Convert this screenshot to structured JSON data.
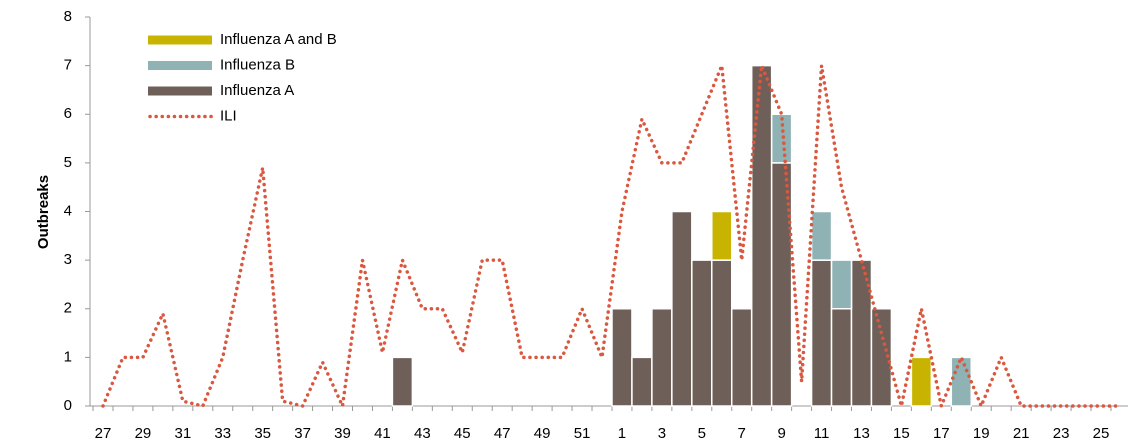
{
  "chart_data": {
    "type": "bar",
    "y_label": "Outbreaks",
    "categories": [
      "27",
      null,
      "29",
      null,
      "31",
      null,
      "33",
      null,
      "35",
      null,
      "37",
      null,
      "39",
      null,
      "41",
      null,
      "43",
      null,
      "45",
      null,
      "47",
      null,
      "49",
      null,
      "51",
      null,
      "1",
      null,
      "3",
      null,
      "5",
      null,
      "7",
      null,
      "9",
      null,
      "11",
      null,
      "13",
      null,
      "15",
      null,
      "17",
      null,
      "19",
      null,
      "21",
      null,
      "23",
      null,
      "25",
      null
    ],
    "series": [
      {
        "name": "Influenza A and B",
        "type": "bar",
        "color": "#c8b400",
        "values": [
          0,
          0,
          0,
          0,
          0,
          0,
          0,
          0,
          0,
          0,
          0,
          0,
          0,
          0,
          0,
          0,
          0,
          0,
          0,
          0,
          0,
          0,
          0,
          0,
          0,
          0,
          0,
          0,
          0,
          0,
          0,
          1,
          0,
          0,
          0,
          0,
          0,
          0,
          0,
          0,
          0,
          1,
          0,
          0,
          0,
          0,
          0,
          0,
          0,
          0,
          0,
          0
        ]
      },
      {
        "name": "Influenza B",
        "type": "bar",
        "color": "#8fb3b5",
        "values": [
          0,
          0,
          0,
          0,
          0,
          0,
          0,
          0,
          0,
          0,
          0,
          0,
          0,
          0,
          0,
          0,
          0,
          0,
          0,
          0,
          0,
          0,
          0,
          0,
          0,
          0,
          0,
          0,
          0,
          0,
          0,
          0,
          0,
          0,
          1,
          0,
          1,
          1,
          0,
          0,
          0,
          0,
          0,
          1,
          0,
          0,
          0,
          0,
          0,
          0,
          0,
          0
        ]
      },
      {
        "name": "Influenza A",
        "type": "bar",
        "color": "#6e5f58",
        "values": [
          0,
          0,
          0,
          0,
          0,
          0,
          0,
          0,
          0,
          0,
          0,
          0,
          0,
          0,
          0,
          1,
          0,
          0,
          0,
          0,
          0,
          0,
          0,
          0,
          0,
          0,
          2,
          1,
          2,
          4,
          3,
          3,
          2,
          7,
          5,
          0,
          3,
          2,
          3,
          2,
          0,
          0,
          0,
          0,
          0,
          0,
          0,
          0,
          0,
          0,
          0,
          0
        ]
      },
      {
        "name": "ILI",
        "type": "line",
        "color": "#d9583f",
        "values": [
          0,
          1,
          1,
          1.9,
          0.1,
          0,
          1,
          3,
          4.9,
          0.1,
          0,
          0.9,
          0,
          3,
          1.1,
          3,
          2,
          2,
          1.1,
          3,
          3,
          1,
          1,
          1,
          2,
          1,
          4,
          5.9,
          5,
          5,
          6,
          7,
          3,
          7,
          6,
          0.5,
          7,
          4.5,
          3,
          1.5,
          0,
          2,
          0,
          1,
          0,
          1,
          0,
          0,
          0,
          0,
          0,
          0
        ]
      }
    ],
    "ylim": [
      0,
      8
    ],
    "yticks": [
      0,
      1,
      2,
      3,
      4,
      5,
      6,
      7,
      8
    ]
  }
}
